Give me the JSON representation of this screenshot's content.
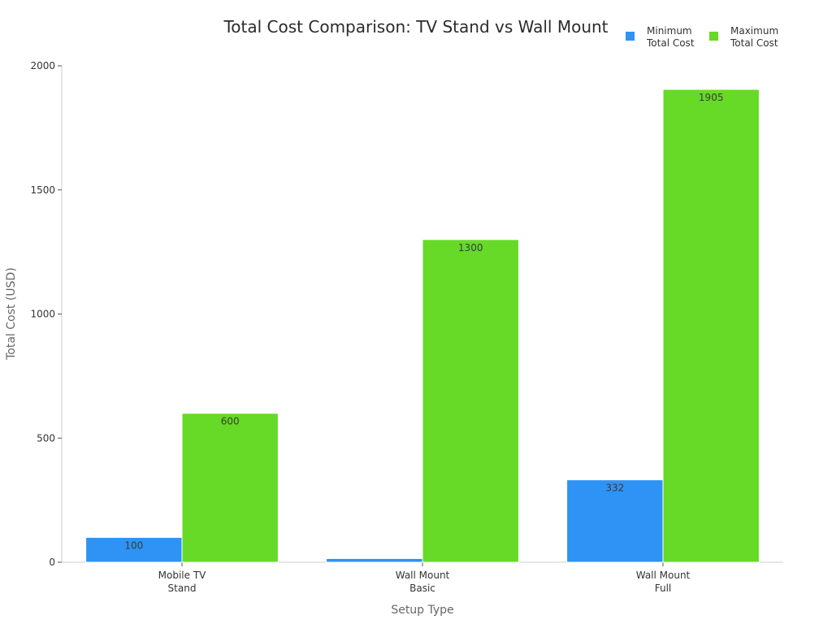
{
  "chart_data": {
    "type": "bar",
    "title": "Total Cost Comparison: TV Stand vs Wall Mount",
    "xlabel": "Setup Type",
    "ylabel": "Total Cost (USD)",
    "categories": [
      [
        "Mobile TV",
        "Stand"
      ],
      [
        "Wall Mount",
        "Basic"
      ],
      [
        "Wall Mount",
        "Full"
      ]
    ],
    "series": [
      {
        "name": [
          "Minimum",
          "Total Cost"
        ],
        "values": [
          100,
          15,
          332
        ],
        "labels": [
          "100",
          "",
          "332"
        ],
        "color": "#2e93f5"
      },
      {
        "name": [
          "Maximum",
          "Total Cost"
        ],
        "values": [
          600,
          1300,
          1905
        ],
        "labels": [
          "600",
          "1300",
          "1905"
        ],
        "color": "#66da26"
      }
    ],
    "ylim": [
      0,
      2000
    ],
    "yticks": [
      0,
      500,
      1000,
      1500,
      2000
    ],
    "grid": false,
    "legend_position": "top-right"
  }
}
